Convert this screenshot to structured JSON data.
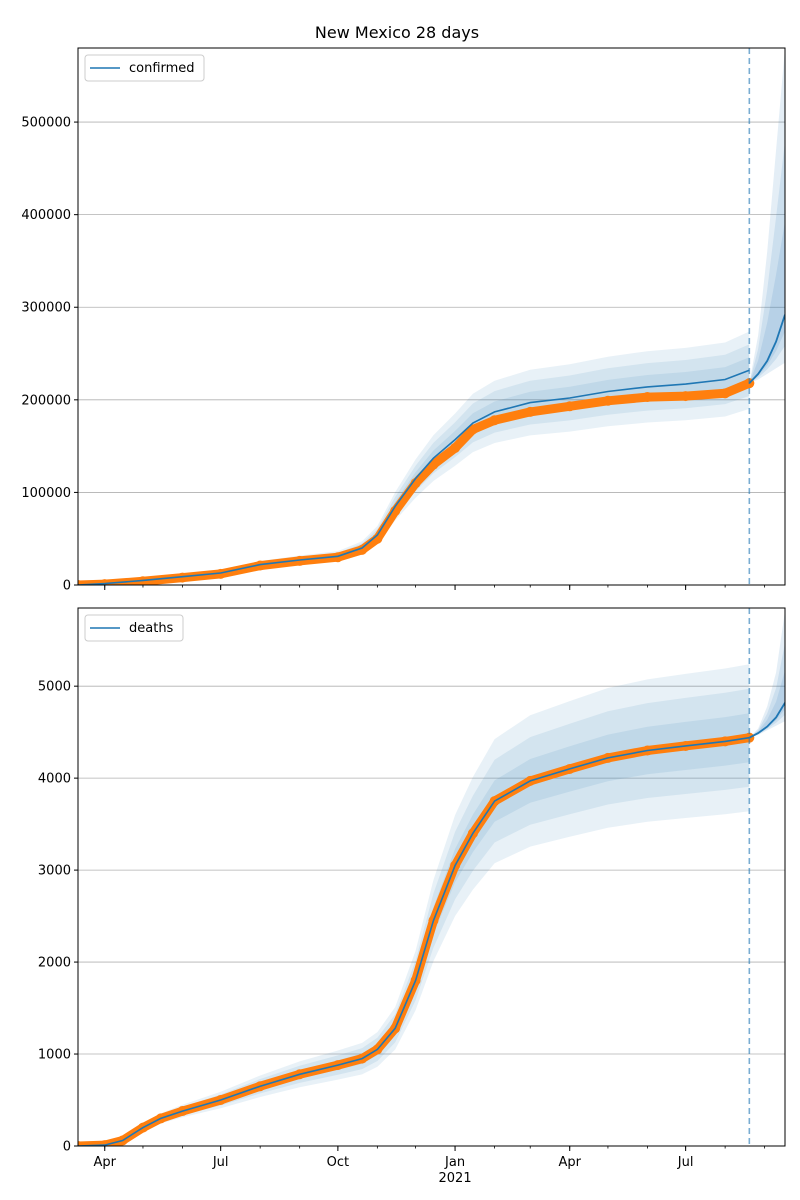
{
  "chart_data": [
    {
      "type": "line",
      "title": "New Mexico 28 days",
      "legend": [
        "confirmed"
      ],
      "legend_position": "upper-left",
      "ylim": [
        0,
        580000
      ],
      "yticks": [
        0,
        100000,
        200000,
        300000,
        400000,
        500000
      ],
      "ytick_labels": [
        "0",
        "100000",
        "200000",
        "300000",
        "400000",
        "500000"
      ],
      "grid": "horizontal",
      "forecast_start": "2021-08-20",
      "observed": {
        "x": [
          "2020-03-11",
          "2020-04-01",
          "2020-05-01",
          "2020-06-01",
          "2020-07-01",
          "2020-08-01",
          "2020-09-01",
          "2020-10-01",
          "2020-10-20",
          "2020-11-01",
          "2020-11-15",
          "2020-12-01",
          "2020-12-15",
          "2021-01-01",
          "2021-01-15",
          "2021-02-01",
          "2021-03-01",
          "2021-04-01",
          "2021-05-01",
          "2021-06-01",
          "2021-07-01",
          "2021-08-01",
          "2021-08-20"
        ],
        "y": [
          0,
          1000,
          4000,
          8000,
          12000,
          21000,
          26000,
          30000,
          38000,
          50000,
          80000,
          110000,
          130000,
          148000,
          168000,
          178000,
          187000,
          193000,
          199000,
          203000,
          204000,
          207000,
          218000
        ]
      },
      "fit": {
        "x": [
          "2020-03-11",
          "2020-04-01",
          "2020-05-01",
          "2020-06-01",
          "2020-07-01",
          "2020-08-01",
          "2020-09-01",
          "2020-10-01",
          "2020-10-20",
          "2020-11-01",
          "2020-11-15",
          "2020-12-01",
          "2020-12-15",
          "2021-01-01",
          "2021-01-15",
          "2021-02-01",
          "2021-03-01",
          "2021-04-01",
          "2021-05-01",
          "2021-06-01",
          "2021-07-01",
          "2021-08-01",
          "2021-08-20"
        ],
        "y": [
          0,
          1500,
          5000,
          9000,
          13000,
          22000,
          27000,
          31000,
          40000,
          54000,
          85000,
          115000,
          137000,
          157000,
          175000,
          187000,
          197000,
          202000,
          209000,
          214000,
          217000,
          222000,
          232000
        ]
      },
      "forecast": {
        "x": [
          "2021-08-20",
          "2021-08-27",
          "2021-09-03",
          "2021-09-10",
          "2021-09-17"
        ],
        "y": [
          218000,
          228000,
          242000,
          263000,
          292000
        ],
        "upper": [
          218000,
          270000,
          360000,
          470000,
          580000
        ],
        "lower": [
          218000,
          222000,
          228000,
          234000,
          240000
        ]
      }
    },
    {
      "type": "line",
      "legend": [
        "deaths"
      ],
      "legend_position": "upper-left",
      "ylim": [
        0,
        5850
      ],
      "yticks": [
        0,
        1000,
        2000,
        3000,
        4000,
        5000
      ],
      "ytick_labels": [
        "0",
        "1000",
        "2000",
        "3000",
        "4000",
        "5000"
      ],
      "grid": "horizontal",
      "forecast_start": "2021-08-20",
      "observed": {
        "x": [
          "2020-03-11",
          "2020-04-01",
          "2020-04-15",
          "2020-05-01",
          "2020-05-15",
          "2020-06-01",
          "2020-07-01",
          "2020-08-01",
          "2020-09-01",
          "2020-10-01",
          "2020-10-20",
          "2020-11-01",
          "2020-11-15",
          "2020-12-01",
          "2020-12-15",
          "2021-01-01",
          "2021-01-15",
          "2021-02-01",
          "2021-03-01",
          "2021-04-01",
          "2021-05-01",
          "2021-06-01",
          "2021-07-01",
          "2021-08-01",
          "2021-08-20"
        ],
        "y": [
          0,
          10,
          60,
          200,
          300,
          380,
          500,
          650,
          780,
          880,
          950,
          1050,
          1280,
          1800,
          2450,
          3050,
          3400,
          3750,
          3970,
          4100,
          4220,
          4300,
          4350,
          4400,
          4440
        ]
      },
      "fit": {
        "x": [
          "2020-03-11",
          "2020-04-01",
          "2020-04-15",
          "2020-05-01",
          "2020-05-15",
          "2020-06-01",
          "2020-07-01",
          "2020-08-01",
          "2020-09-01",
          "2020-10-01",
          "2020-10-20",
          "2020-11-01",
          "2020-11-15",
          "2020-12-01",
          "2020-12-15",
          "2021-01-01",
          "2021-01-15",
          "2021-02-01",
          "2021-03-01",
          "2021-04-01",
          "2021-05-01",
          "2021-06-01",
          "2021-07-01",
          "2021-08-01",
          "2021-08-20"
        ],
        "y": [
          0,
          10,
          60,
          200,
          300,
          380,
          500,
          650,
          780,
          880,
          950,
          1050,
          1280,
          1800,
          2450,
          3050,
          3400,
          3750,
          3970,
          4100,
          4220,
          4300,
          4350,
          4400,
          4440
        ]
      },
      "forecast": {
        "x": [
          "2021-08-20",
          "2021-08-27",
          "2021-09-03",
          "2021-09-10",
          "2021-09-17"
        ],
        "y": [
          4440,
          4490,
          4560,
          4660,
          4820
        ],
        "upper": [
          4440,
          4540,
          4780,
          5150,
          5820
        ],
        "lower": [
          4440,
          4470,
          4520,
          4570,
          4620
        ]
      }
    }
  ],
  "x_axis": {
    "range": [
      "2020-03-11",
      "2021-09-17"
    ],
    "ticks": [
      "2020-04-01",
      "2020-07-01",
      "2020-10-01",
      "2021-01-01",
      "2021-04-01",
      "2021-07-01"
    ],
    "tick_labels": [
      "Apr",
      "Jul",
      "Oct",
      "Jan",
      "Apr",
      "Jul"
    ],
    "year_label": "2021",
    "year_tick": "2021-01-01"
  },
  "colors": {
    "fit": "#1f77b4",
    "observed": "#ff7f0e",
    "band": "#1f77b4",
    "forecast_line": "#1f77b4",
    "grid": "#b0b0b0"
  }
}
